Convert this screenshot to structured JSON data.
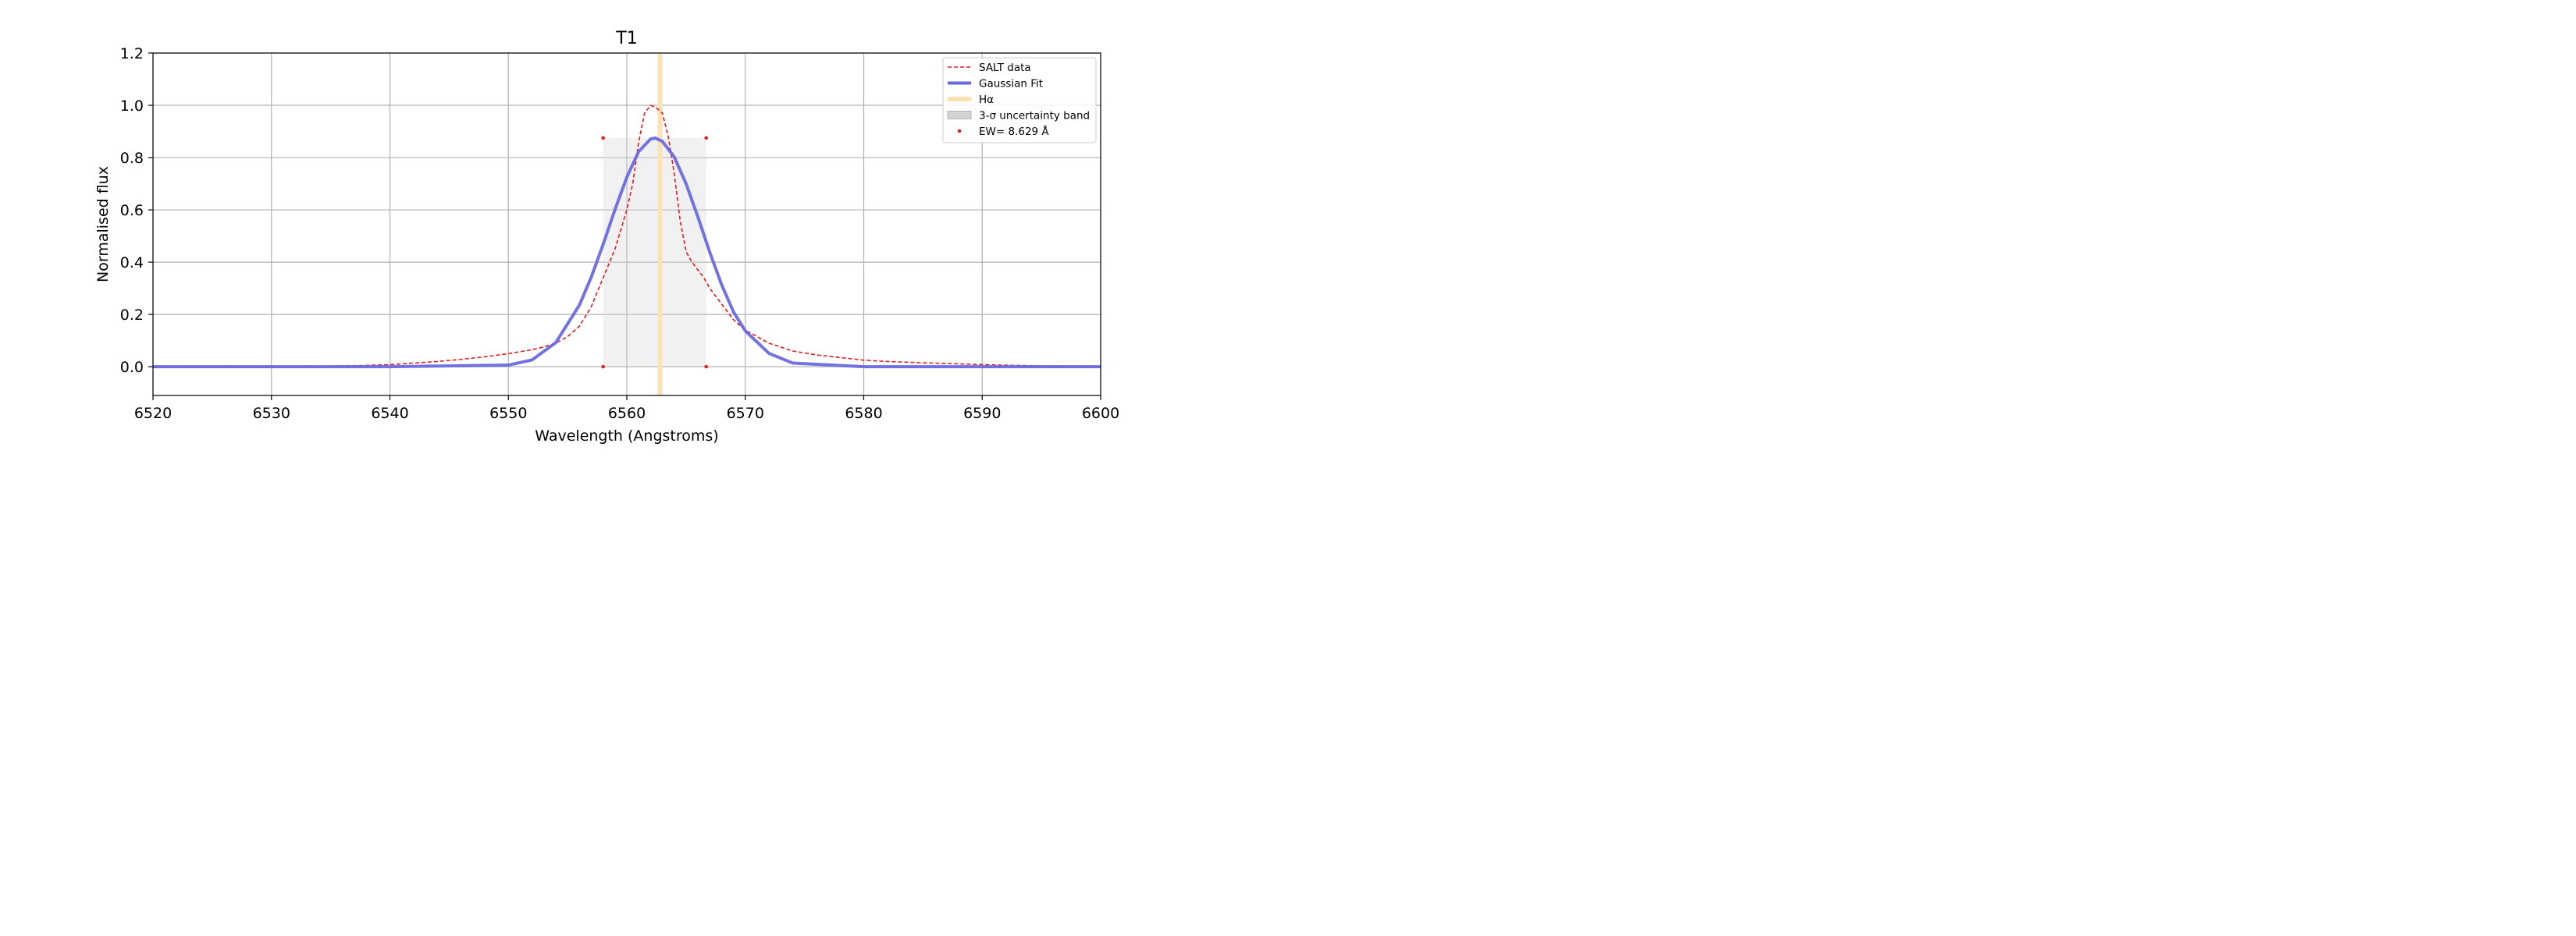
{
  "chart_data": {
    "type": "line",
    "title": "T1",
    "xlabel": "Wavelength (Angstroms)",
    "ylabel": "Normalised flux",
    "xlim": [
      6520,
      6600
    ],
    "ylim": [
      -0.11,
      1.2
    ],
    "xticks": [
      6520,
      6530,
      6540,
      6550,
      6560,
      6570,
      6580,
      6590,
      6600
    ],
    "xtick_labels": [
      "6520",
      "6530",
      "6540",
      "6550",
      "6560",
      "6570",
      "6580",
      "6590",
      "6600"
    ],
    "yticks": [
      0.0,
      0.2,
      0.4,
      0.6,
      0.8,
      1.0,
      1.2
    ],
    "ytick_labels": [
      "0.0",
      "0.2",
      "0.4",
      "0.6",
      "0.8",
      "1.0",
      "1.2"
    ],
    "grid": true,
    "legend_position": "top-right",
    "legend": [
      {
        "label": "SALT data",
        "style": "dashed-line",
        "color": "#e41a1c"
      },
      {
        "label": "Gaussian Fit",
        "style": "line",
        "color": "#6a6ae0"
      },
      {
        "label": "Hα",
        "style": "line",
        "color": "#fde2b0"
      },
      {
        "label": "3-σ uncertainty band",
        "style": "patch",
        "color": "#d3d3d3"
      },
      {
        "label": "EW= 8.629 Å",
        "style": "marker",
        "color": "#e41a1c"
      }
    ],
    "series": [
      {
        "name": "SALT data",
        "color": "#e41a1c",
        "x": [
          6520,
          6525,
          6530,
          6535,
          6538,
          6540,
          6542,
          6544,
          6546,
          6548,
          6550,
          6552,
          6553,
          6554,
          6555,
          6556,
          6557,
          6558,
          6559,
          6560,
          6560.5,
          6561,
          6561.5,
          6562,
          6562.5,
          6563,
          6563.5,
          6564,
          6564.5,
          6565,
          6565.5,
          6566,
          6566.5,
          6567,
          6568,
          6569,
          6570,
          6572,
          6574,
          6576,
          6578,
          6580,
          6582,
          6585,
          6590,
          6595,
          6600
        ],
        "y": [
          0.0,
          -0.003,
          -0.002,
          0.002,
          0.005,
          0.008,
          0.014,
          0.02,
          0.028,
          0.038,
          0.05,
          0.065,
          0.076,
          0.09,
          0.115,
          0.155,
          0.23,
          0.34,
          0.45,
          0.6,
          0.7,
          0.86,
          0.97,
          1.0,
          0.99,
          0.97,
          0.88,
          0.74,
          0.56,
          0.44,
          0.4,
          0.37,
          0.34,
          0.3,
          0.24,
          0.18,
          0.14,
          0.09,
          0.06,
          0.045,
          0.035,
          0.025,
          0.02,
          0.015,
          0.008,
          0.003,
          0.001
        ]
      },
      {
        "name": "Gaussian Fit",
        "color": "#6a6ae0",
        "center": 6562.4,
        "sigma": 3.95,
        "amplitude": 0.875,
        "x": [
          6520,
          6540,
          6550,
          6552,
          6554,
          6556,
          6557,
          6558,
          6559,
          6560,
          6561,
          6562,
          6562.4,
          6563,
          6564,
          6565,
          6566,
          6567,
          6568,
          6569,
          6570,
          6572,
          6574,
          6580,
          6600
        ],
        "y": [
          0.0,
          0.0,
          0.0062,
          0.026,
          0.092,
          0.236,
          0.343,
          0.468,
          0.601,
          0.725,
          0.823,
          0.871,
          0.875,
          0.862,
          0.803,
          0.7,
          0.573,
          0.438,
          0.314,
          0.21,
          0.137,
          0.051,
          0.014,
          0.0,
          0.0
        ]
      }
    ],
    "halpha_line": {
      "x": 6562.8,
      "color": "#fde2b0"
    },
    "uncertainty_band": {
      "x0": 6558.0,
      "x1": 6566.7,
      "y0": 0.0,
      "y1": 0.875,
      "color": "#d3d3d3"
    },
    "ew_markers": [
      {
        "x": 6558.0,
        "y": 0.875
      },
      {
        "x": 6566.7,
        "y": 0.875
      },
      {
        "x": 6558.0,
        "y": 0.0
      },
      {
        "x": 6566.7,
        "y": 0.0
      }
    ]
  }
}
